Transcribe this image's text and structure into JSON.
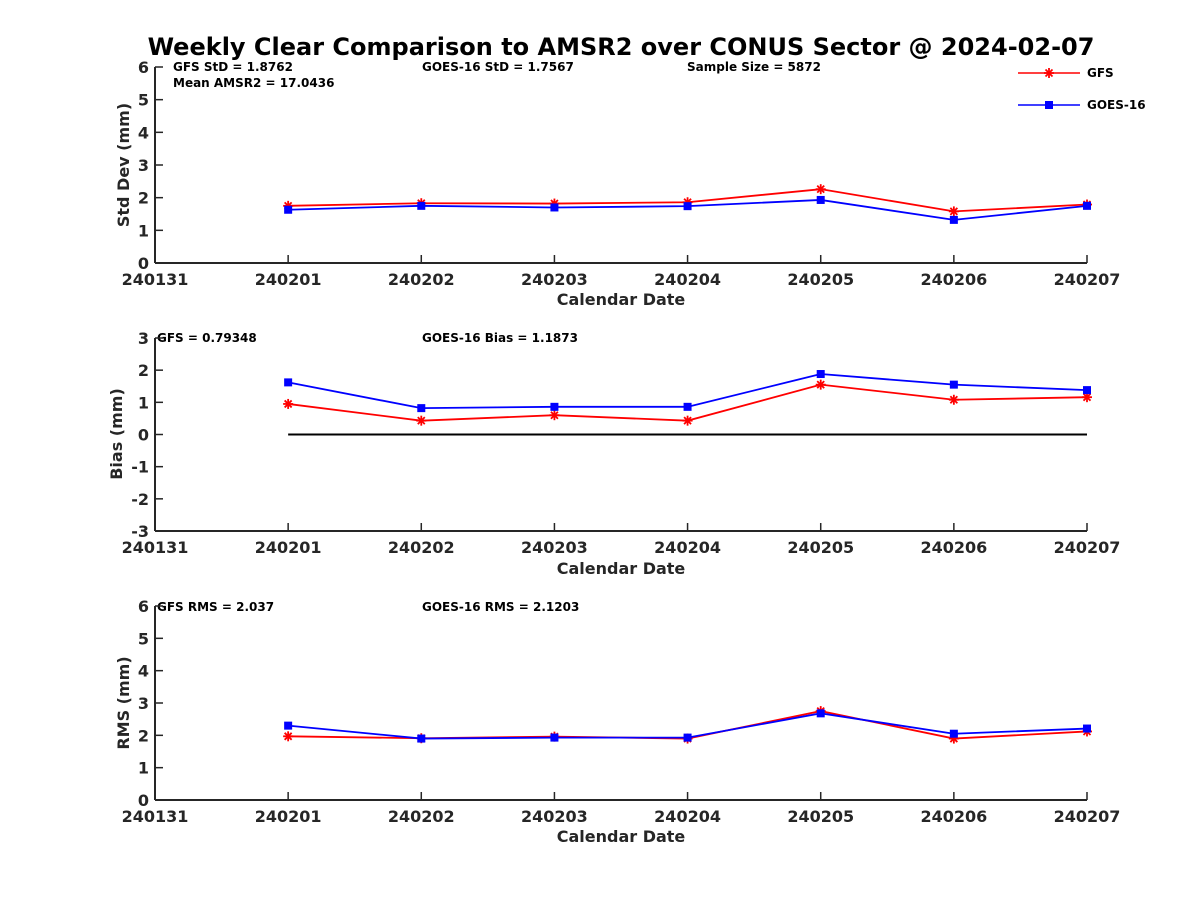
{
  "figure": {
    "title": "Weekly Clear Comparison to AMSR2 over CONUS Sector @ 2024-02-07"
  },
  "legend": {
    "placement": "top-right",
    "entries": [
      {
        "name": "GFS",
        "color": "#ff0000",
        "marker": "asterisk"
      },
      {
        "name": "GOES-16",
        "color": "#0000ff",
        "marker": "square"
      }
    ]
  },
  "chart_data": [
    {
      "type": "line",
      "xlabel": "Calendar Date",
      "ylabel": "Std Dev (mm)",
      "x": [
        "240201",
        "240202",
        "240203",
        "240204",
        "240205",
        "240206",
        "240207"
      ],
      "xticks": [
        "240131",
        "240201",
        "240202",
        "240203",
        "240204",
        "240205",
        "240206",
        "240207"
      ],
      "ylim": [
        0,
        6
      ],
      "yticks": [
        "0",
        "1",
        "2",
        "3",
        "4",
        "5",
        "6"
      ],
      "annotations": [
        "GFS StD = 1.8762",
        "GOES-16 StD = 1.7567",
        "Sample Size = 5872",
        "Mean AMSR2 = 17.0436"
      ],
      "zero_line": false,
      "series": [
        {
          "name": "GFS",
          "color": "#ff0000",
          "marker": "asterisk",
          "values": [
            1.75,
            1.83,
            1.82,
            1.86,
            2.26,
            1.58,
            1.79
          ]
        },
        {
          "name": "GOES-16",
          "color": "#0000ff",
          "marker": "square",
          "values": [
            1.63,
            1.75,
            1.7,
            1.74,
            1.93,
            1.32,
            1.75
          ]
        }
      ]
    },
    {
      "type": "line",
      "xlabel": "Calendar Date",
      "ylabel": "Bias (mm)",
      "x": [
        "240201",
        "240202",
        "240203",
        "240204",
        "240205",
        "240206",
        "240207"
      ],
      "xticks": [
        "240131",
        "240201",
        "240202",
        "240203",
        "240204",
        "240205",
        "240206",
        "240207"
      ],
      "ylim": [
        -3,
        3
      ],
      "yticks": [
        "-3",
        "-2",
        "-1",
        "0",
        "1",
        "2",
        "3"
      ],
      "annotations": [
        "GFS = 0.79348",
        "GOES-16 Bias  = 1.1873"
      ],
      "zero_line": true,
      "series": [
        {
          "name": "GFS",
          "color": "#ff0000",
          "marker": "asterisk",
          "values": [
            0.95,
            0.43,
            0.6,
            0.43,
            1.55,
            1.08,
            1.16
          ]
        },
        {
          "name": "GOES-16",
          "color": "#0000ff",
          "marker": "square",
          "values": [
            1.62,
            0.82,
            0.86,
            0.86,
            1.88,
            1.55,
            1.38
          ]
        }
      ]
    },
    {
      "type": "line",
      "xlabel": "Calendar Date",
      "ylabel": "RMS (mm)",
      "x": [
        "240201",
        "240202",
        "240203",
        "240204",
        "240205",
        "240206",
        "240207"
      ],
      "xticks": [
        "240131",
        "240201",
        "240202",
        "240203",
        "240204",
        "240205",
        "240206",
        "240207"
      ],
      "ylim": [
        0,
        6
      ],
      "yticks": [
        "0",
        "1",
        "2",
        "3",
        "4",
        "5",
        "6"
      ],
      "annotations": [
        "GFS RMS = 2.037",
        "GOES-16 RMS = 2.1203"
      ],
      "zero_line": false,
      "series": [
        {
          "name": "GFS",
          "color": "#ff0000",
          "marker": "asterisk",
          "values": [
            1.97,
            1.91,
            1.96,
            1.9,
            2.75,
            1.9,
            2.12
          ]
        },
        {
          "name": "GOES-16",
          "color": "#0000ff",
          "marker": "square",
          "values": [
            2.3,
            1.9,
            1.93,
            1.93,
            2.68,
            2.05,
            2.21
          ]
        }
      ]
    }
  ]
}
